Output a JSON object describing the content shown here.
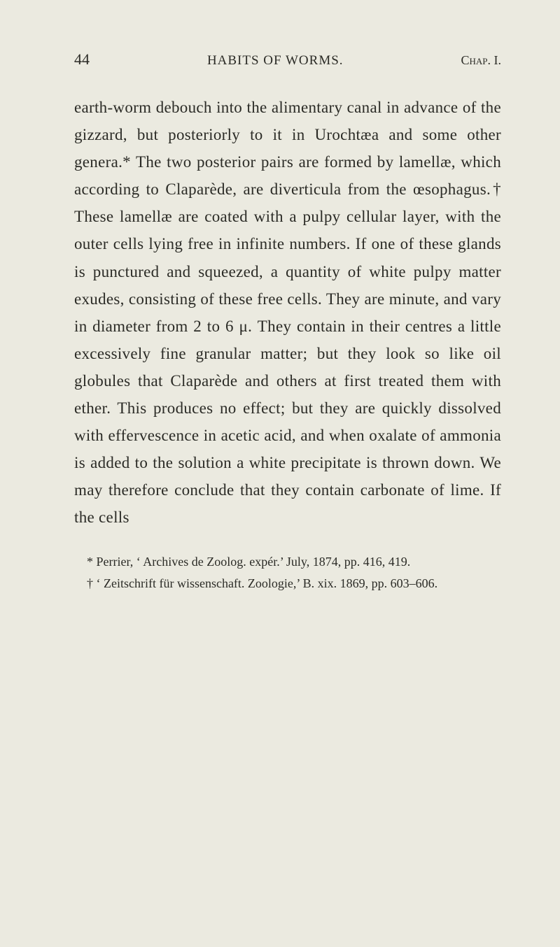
{
  "header": {
    "page_number": "44",
    "title": "HABITS OF WORMS.",
    "chapter": "Chap. I."
  },
  "body": {
    "paragraph": "earth-worm debouch into the alimentary canal in advance of the gizzard, but pos­teriorly to it in Urochtæa and some other genera.* The two posterior pairs are formed by lamellæ, which according to Claparède, are diverticula from the œsophagus.† These lamellæ are coated with a pulpy cellular layer, with the outer cells lying free in in­finite numbers. If one of these glands is punctured and squeezed, a quantity of white pulpy matter exudes, consisting of these free cells. They are minute, and vary in diameter from 2 to 6 μ. They contain in their centres a little excessively fine granular matter; but they look so like oil globules that Claparède and others at first treated them with ether. This produces no effect; but they are quickly dissolved with effervescence in acetic acid, and when oxalate of ammonia is added to the solution a white precipitate is thrown down. We may therefore conclude that they contain carbonate of lime. If the cells"
  },
  "footnotes": {
    "note1": "* Perrier, ‘ Archives de Zoolog. expér.’ July, 1874, pp. 416, 419.",
    "note2": "† ‘ Zeitschrift für wissenschaft. Zoologie,’ B. xix. 1869, pp. 603–606."
  },
  "colors": {
    "background": "#ebeae0",
    "text": "#2b2b26"
  },
  "typography": {
    "body_fontsize": 23,
    "header_fontsize": 20,
    "footnote_fontsize": 18,
    "line_height": 1.7,
    "font_family": "Georgia, Times New Roman, serif"
  }
}
